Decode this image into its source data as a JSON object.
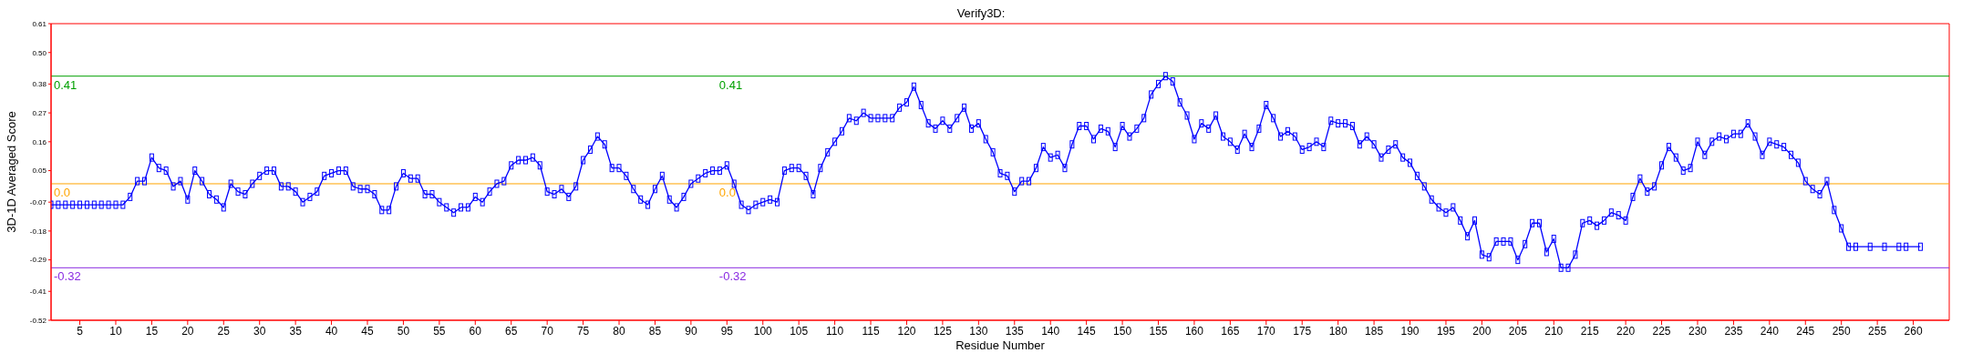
{
  "chart_data": {
    "type": "line",
    "title": "Verify3D:",
    "xlabel": "Residue Number",
    "ylabel": "3D-1D Averaged Score",
    "x": [
      1,
      2,
      3,
      4,
      5,
      6,
      7,
      8,
      9,
      10,
      11,
      12,
      13,
      14,
      15,
      16,
      17,
      18,
      19,
      20,
      21,
      22,
      23,
      24,
      25,
      26,
      27,
      28,
      29,
      30,
      31,
      32,
      33,
      34,
      35,
      36,
      37,
      38,
      39,
      40,
      41,
      42,
      43,
      44,
      45,
      46,
      47,
      48,
      49,
      50,
      51,
      52,
      53,
      54,
      55,
      56,
      57,
      58,
      59,
      60,
      61,
      62,
      63,
      64,
      65,
      66,
      67,
      68,
      69,
      70,
      71,
      72,
      73,
      74,
      75,
      76,
      77,
      78,
      79,
      80,
      81,
      82,
      83,
      84,
      85,
      86,
      87,
      88,
      89,
      90,
      91,
      92,
      93,
      94,
      95,
      96,
      97,
      98,
      99,
      100,
      101,
      102,
      103,
      104,
      105,
      106,
      107,
      108,
      109,
      110,
      111,
      112,
      113,
      114,
      115,
      116,
      117,
      118,
      119,
      120,
      121,
      122,
      123,
      124,
      125,
      126,
      127,
      128,
      129,
      130,
      131,
      132,
      133,
      134,
      135,
      136,
      137,
      138,
      139,
      140,
      141,
      142,
      143,
      144,
      145,
      146,
      147,
      148,
      149,
      150,
      151,
      152,
      153,
      154,
      155,
      156,
      157,
      158,
      159,
      160,
      161,
      162,
      163,
      164,
      165,
      166,
      167,
      168,
      169,
      170,
      171,
      172,
      173,
      174,
      175,
      176,
      177,
      178,
      179,
      180,
      181,
      182,
      183,
      184,
      185,
      186,
      187,
      188,
      189,
      190,
      191,
      192,
      193,
      194,
      195,
      196,
      197,
      198,
      199,
      200,
      201,
      202,
      203,
      204,
      205,
      206,
      207,
      208,
      209,
      210,
      211,
      212,
      213,
      214,
      215,
      216,
      217,
      218,
      219,
      220,
      221,
      222,
      223,
      224,
      225,
      226,
      227,
      228,
      229,
      230,
      231,
      232,
      233,
      234,
      235,
      236,
      237,
      238,
      239,
      240,
      241,
      242,
      243,
      244,
      245,
      246,
      247,
      248,
      249,
      250,
      251,
      252,
      254,
      256,
      258,
      259,
      261
    ],
    "series": [
      {
        "color": "#0000ff",
        "values": [
          -0.08,
          -0.08,
          -0.08,
          -0.08,
          -0.08,
          -0.08,
          -0.08,
          -0.08,
          -0.08,
          -0.08,
          -0.08,
          -0.05,
          0.01,
          0.01,
          0.1,
          0.06,
          0.05,
          -0.01,
          0.01,
          -0.06,
          0.05,
          0.01,
          -0.04,
          -0.06,
          -0.09,
          0.0,
          -0.03,
          -0.04,
          0.0,
          0.03,
          0.05,
          0.05,
          -0.01,
          -0.01,
          -0.03,
          -0.07,
          -0.05,
          -0.03,
          0.03,
          0.04,
          0.05,
          0.05,
          -0.01,
          -0.02,
          -0.02,
          -0.04,
          -0.1,
          -0.1,
          -0.01,
          0.04,
          0.02,
          0.02,
          -0.04,
          -0.04,
          -0.07,
          -0.09,
          -0.11,
          -0.09,
          -0.09,
          -0.05,
          -0.07,
          -0.03,
          0.0,
          0.01,
          0.07,
          0.09,
          0.09,
          0.1,
          0.07,
          -0.03,
          -0.04,
          -0.02,
          -0.05,
          -0.01,
          0.09,
          0.13,
          0.18,
          0.15,
          0.06,
          0.06,
          0.03,
          -0.02,
          -0.06,
          -0.08,
          -0.02,
          0.03,
          -0.06,
          -0.09,
          -0.05,
          0.0,
          0.02,
          0.04,
          0.05,
          0.05,
          0.07,
          0.0,
          -0.08,
          -0.1,
          -0.08,
          -0.07,
          -0.06,
          -0.07,
          0.05,
          0.06,
          0.06,
          0.03,
          -0.04,
          0.06,
          0.12,
          0.16,
          0.2,
          0.25,
          0.24,
          0.27,
          0.25,
          0.25,
          0.25,
          0.25,
          0.29,
          0.31,
          0.37,
          0.3,
          0.23,
          0.21,
          0.24,
          0.21,
          0.25,
          0.29,
          0.21,
          0.23,
          0.17,
          0.12,
          0.04,
          0.03,
          -0.03,
          0.01,
          0.01,
          0.06,
          0.14,
          0.1,
          0.11,
          0.06,
          0.15,
          0.22,
          0.22,
          0.17,
          0.21,
          0.2,
          0.14,
          0.22,
          0.18,
          0.21,
          0.25,
          0.34,
          0.38,
          0.41,
          0.39,
          0.31,
          0.26,
          0.17,
          0.23,
          0.21,
          0.26,
          0.18,
          0.16,
          0.13,
          0.19,
          0.14,
          0.21,
          0.3,
          0.25,
          0.18,
          0.2,
          0.18,
          0.13,
          0.14,
          0.16,
          0.14,
          0.24,
          0.23,
          0.23,
          0.22,
          0.15,
          0.18,
          0.15,
          0.1,
          0.13,
          0.15,
          0.1,
          0.08,
          0.03,
          -0.01,
          -0.06,
          -0.09,
          -0.11,
          -0.09,
          -0.14,
          -0.2,
          -0.14,
          -0.27,
          -0.28,
          -0.22,
          -0.22,
          -0.22,
          -0.29,
          -0.23,
          -0.15,
          -0.15,
          -0.26,
          -0.21,
          -0.32,
          -0.32,
          -0.27,
          -0.15,
          -0.14,
          -0.16,
          -0.14,
          -0.11,
          -0.12,
          -0.14,
          -0.05,
          0.02,
          -0.03,
          -0.01,
          0.07,
          0.14,
          0.1,
          0.05,
          0.06,
          0.16,
          0.11,
          0.16,
          0.18,
          0.17,
          0.19,
          0.19,
          0.23,
          0.18,
          0.11,
          0.16,
          0.15,
          0.14,
          0.11,
          0.08,
          0.01,
          -0.02,
          -0.04,
          0.01,
          -0.1,
          -0.17,
          -0.24,
          -0.24,
          -0.24,
          -0.24,
          -0.24,
          -0.24,
          -0.24
        ]
      }
    ],
    "xlim": [
      1,
      265
    ],
    "xticks": [
      5,
      10,
      15,
      20,
      25,
      30,
      35,
      40,
      45,
      50,
      55,
      60,
      65,
      70,
      75,
      80,
      85,
      90,
      95,
      100,
      105,
      110,
      115,
      120,
      125,
      130,
      135,
      140,
      145,
      150,
      155,
      160,
      165,
      170,
      175,
      180,
      185,
      190,
      195,
      200,
      205,
      210,
      215,
      220,
      225,
      230,
      235,
      240,
      245,
      250,
      255,
      260
    ],
    "ylim": [
      -0.52,
      0.61
    ],
    "yticks": [
      -0.52,
      -0.41,
      -0.29,
      -0.18,
      -0.07,
      0.05,
      0.16,
      0.27,
      0.38,
      {
        "value": 0.5,
        "label": "0.50"
      },
      0.61
    ],
    "ref_lines": [
      {
        "axis": "y",
        "value": 0.41,
        "label": "0.41",
        "color": "#00a000"
      },
      {
        "axis": "y",
        "value": 0.0,
        "label": "0.0",
        "color": "#ffa500"
      },
      {
        "axis": "y",
        "value": -0.32,
        "label": "-0.32",
        "color": "#8a2be2"
      }
    ],
    "marker": "square",
    "line_style": "solid"
  }
}
